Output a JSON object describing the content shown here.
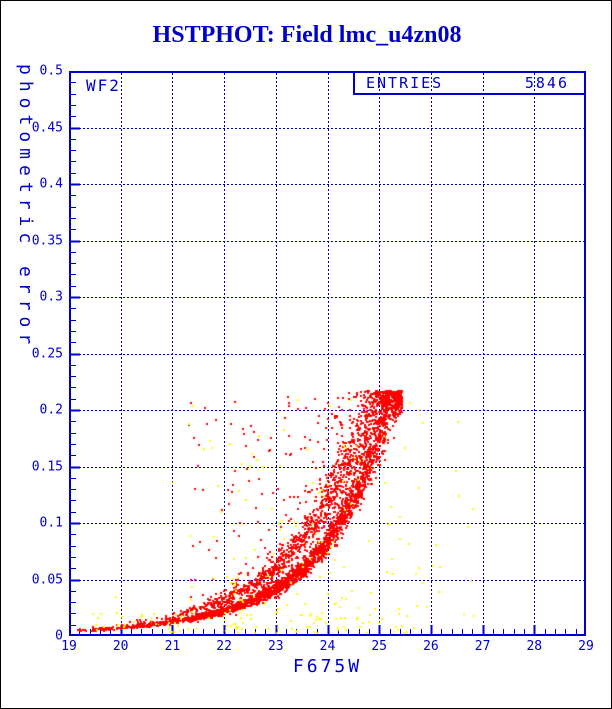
{
  "title": {
    "text": "HSTPHOT: Field lmc_u4zn08",
    "color": "#0000cc"
  },
  "plot": {
    "chip_label": "WF2",
    "entries_label": "ENTRIES",
    "entries_value": "5846",
    "xlabel": "F675W",
    "ylabel": "photometric error",
    "frame_color": "#0000cc",
    "text_color": "#0000cc",
    "background": "#ffffff",
    "page_border_color": "#000000"
  },
  "chart_data": {
    "type": "scatter",
    "title": "HSTPHOT: Field lmc_u4zn08",
    "xlabel": "F675W",
    "ylabel": "photometric error",
    "annotations": [
      "WF2",
      "ENTRIES 5846"
    ],
    "entries": 5846,
    "xlim": [
      19,
      29
    ],
    "ylim": [
      0,
      0.5
    ],
    "x_major_ticks": [
      19,
      20,
      21,
      22,
      23,
      24,
      25,
      26,
      27,
      28,
      29
    ],
    "x_minor_step": 0.2,
    "y_ticks": [
      {
        "value": 0.5,
        "label": "0.5"
      },
      {
        "value": 0.45,
        "label": "0.45"
      },
      {
        "value": 0.4,
        "label": "0.4"
      },
      {
        "value": 0.35,
        "label": "0.35"
      },
      {
        "value": 0.3,
        "label": "0.3"
      },
      {
        "value": 0.25,
        "label": "0.25"
      },
      {
        "value": 0.2,
        "label": "0.2"
      },
      {
        "value": 0.15,
        "label": "0.15"
      },
      {
        "value": 0.1,
        "label": "0.1"
      },
      {
        "value": 0.05,
        "label": "0.05"
      },
      {
        "value": 0,
        "label": "0"
      }
    ],
    "y_minor_step": 0.01,
    "grid": {
      "style": "dashed",
      "color": "#0000cc",
      "at_major_ticks": true
    },
    "legend": null,
    "seed": 42,
    "series": [
      {
        "name": "detections-red",
        "color": "#ff0000",
        "marker": "square-2px",
        "error_cutoff": 0.217,
        "x_max": 25.5,
        "n_main": 3000,
        "n_upper": 1000,
        "n_outliers": 130,
        "ridge_main": [
          [
            19,
            0.0045
          ],
          [
            19.5,
            0.0055
          ],
          [
            20,
            0.007
          ],
          [
            20.5,
            0.0095
          ],
          [
            21,
            0.0125
          ],
          [
            21.5,
            0.0165
          ],
          [
            22,
            0.022
          ],
          [
            22.5,
            0.03
          ],
          [
            23,
            0.041
          ],
          [
            23.5,
            0.058
          ],
          [
            24,
            0.083
          ],
          [
            24.5,
            0.122
          ],
          [
            24.8,
            0.152
          ],
          [
            25.1,
            0.19
          ],
          [
            25.45,
            0.24
          ]
        ],
        "ridge_upper": [
          [
            21,
            0.018
          ],
          [
            21.5,
            0.024
          ],
          [
            22,
            0.032
          ],
          [
            22.5,
            0.044
          ],
          [
            23,
            0.06
          ],
          [
            23.5,
            0.085
          ],
          [
            24,
            0.12
          ],
          [
            24.4,
            0.155
          ],
          [
            24.7,
            0.185
          ],
          [
            25.1,
            0.225
          ]
        ]
      },
      {
        "name": "flagged-yellow",
        "color": "#ffff00",
        "marker": "square-2px",
        "n": 240,
        "x_range": [
          19.4,
          26.9
        ],
        "y_range": [
          0.002,
          0.212
        ]
      }
    ]
  }
}
